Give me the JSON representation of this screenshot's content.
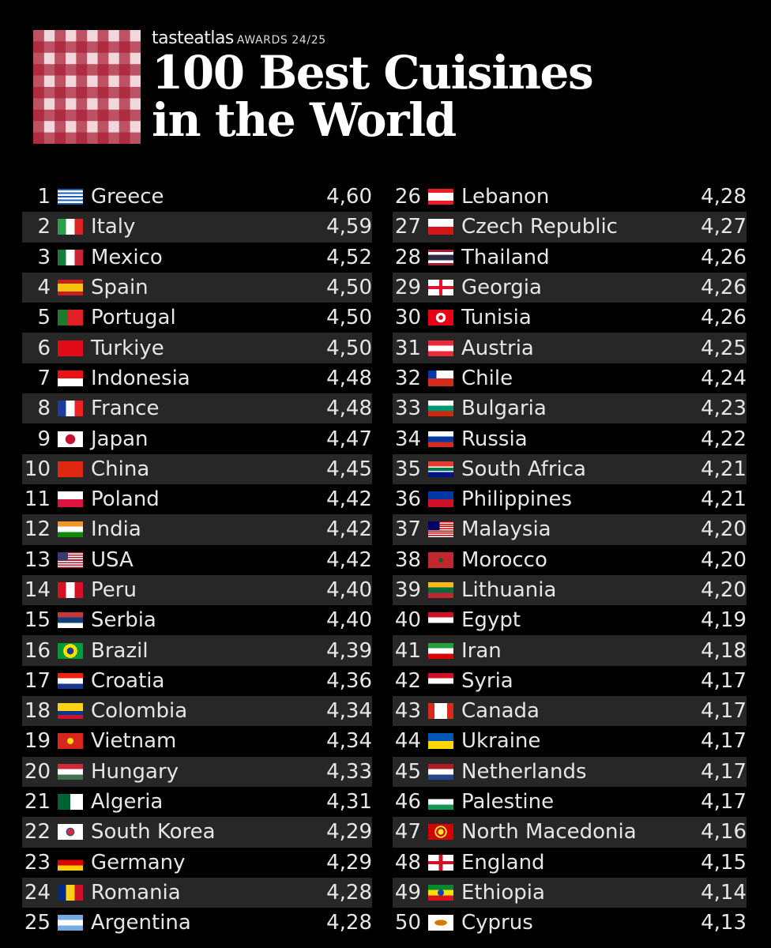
{
  "header": {
    "brand": "tasteatlas",
    "awards": "AWARDS 24/25",
    "title_line1": "100 Best Cuisines",
    "title_line2": "in the World"
  },
  "left": [
    {
      "rank": "1",
      "country": "Greece",
      "score": "4,60",
      "flag": "linear-gradient(180deg,#1b5fb5 0 11%,#fff 11% 22%,#1b5fb5 22% 33%,#fff 33% 44%,#1b5fb5 44% 56%,#fff 56% 67%,#1b5fb5 67% 78%,#fff 78% 89%,#1b5fb5 89%)"
    },
    {
      "rank": "2",
      "country": "Italy",
      "score": "4,59",
      "flag": "linear-gradient(90deg,#2e9e4f 33%,#fff 33% 67%,#d22 67%)"
    },
    {
      "rank": "3",
      "country": "Mexico",
      "score": "4,52",
      "flag": "linear-gradient(90deg,#1a7a3f 33%,#fff 33% 67%,#cc2233 67%)"
    },
    {
      "rank": "4",
      "country": "Spain",
      "score": "4,50",
      "flag": "linear-gradient(180deg,#c41e1e 25%,#f7c30b 25% 75%,#c41e1e 75%)"
    },
    {
      "rank": "5",
      "country": "Portugal",
      "score": "4,50",
      "flag": "linear-gradient(90deg,#1d7a2e 40%,#e01f26 40%)"
    },
    {
      "rank": "6",
      "country": "Turkiye",
      "score": "4,50",
      "flag": "#e30a17"
    },
    {
      "rank": "7",
      "country": "Indonesia",
      "score": "4,48",
      "flag": "linear-gradient(180deg,#e11 50%,#fff 50%)"
    },
    {
      "rank": "8",
      "country": "France",
      "score": "4,48",
      "flag": "linear-gradient(90deg,#1e3c9e 33%,#fff 33% 67%,#e22 67%)"
    },
    {
      "rank": "9",
      "country": "Japan",
      "score": "4,47",
      "flag": "radial-gradient(circle,#c41230 32%,#fff 34%)"
    },
    {
      "rank": "10",
      "country": "China",
      "score": "4,45",
      "flag": "#de2910"
    },
    {
      "rank": "11",
      "country": "Poland",
      "score": "4,42",
      "flag": "linear-gradient(180deg,#fff 50%,#dc143c 50%)"
    },
    {
      "rank": "12",
      "country": "India",
      "score": "4,42",
      "flag": "linear-gradient(180deg,#f0932b 33%,#fff 33% 67%,#138808 67%)"
    },
    {
      "rank": "13",
      "country": "USA",
      "score": "4,42",
      "flag": "linear-gradient(90deg,#3c3b6e 40%,transparent 40%) 0 0/100% 54% no-repeat, repeating-linear-gradient(180deg,#b22234 0 7.7%,#fff 7.7% 15.4%)"
    },
    {
      "rank": "14",
      "country": "Peru",
      "score": "4,40",
      "flag": "linear-gradient(90deg,#d91023 33%,#fff 33% 67%,#d91023 67%)"
    },
    {
      "rank": "15",
      "country": "Serbia",
      "score": "4,40",
      "flag": "linear-gradient(180deg,#c6363c 33%,#0c4076 33% 67%,#fff 67%)"
    },
    {
      "rank": "16",
      "country": "Brazil",
      "score": "4,39",
      "flag": "radial-gradient(circle,#1e3a8a 22%,#fedf00 24% 46%,#009b3a 48%)"
    },
    {
      "rank": "17",
      "country": "Croatia",
      "score": "4,36",
      "flag": "linear-gradient(180deg,#e21 33%,#fff 33% 67%,#18358c 67%)"
    },
    {
      "rank": "18",
      "country": "Colombia",
      "score": "4,34",
      "flag": "linear-gradient(180deg,#fcd116 50%,#003893 50% 75%,#ce1126 75%)"
    },
    {
      "rank": "19",
      "country": "Vietnam",
      "score": "4,34",
      "flag": "radial-gradient(circle,#ffde00 20%,#da251d 22%)"
    },
    {
      "rank": "20",
      "country": "Hungary",
      "score": "4,33",
      "flag": "linear-gradient(180deg,#ce2939 33%,#fff 33% 67%,#477050 67%)"
    },
    {
      "rank": "21",
      "country": "Algeria",
      "score": "4,31",
      "flag": "linear-gradient(90deg,#006233 50%,#fff 50%)"
    },
    {
      "rank": "22",
      "country": "South Korea",
      "score": "4,29",
      "flag": "radial-gradient(circle,#cd2e3a 20%,#0047a0 26%,#fff 30%)"
    },
    {
      "rank": "23",
      "country": "Germany",
      "score": "4,29",
      "flag": "linear-gradient(180deg,#000 33%,#dd0000 33% 67%,#ffce00 67%)"
    },
    {
      "rank": "24",
      "country": "Romania",
      "score": "4,28",
      "flag": "linear-gradient(90deg,#002b7f 33%,#fcd116 33% 67%,#ce1126 67%)"
    },
    {
      "rank": "25",
      "country": "Argentina",
      "score": "4,28",
      "flag": "linear-gradient(180deg,#74acdf 33%,#fff 33% 67%,#74acdf 67%)"
    }
  ],
  "right": [
    {
      "rank": "26",
      "country": "Lebanon",
      "score": "4,28",
      "flag": "linear-gradient(180deg,#ed1c24 25%,#fff 25% 75%,#ed1c24 75%)"
    },
    {
      "rank": "27",
      "country": "Czech Republic",
      "score": "4,27",
      "flag": "linear-gradient(180deg,#fff 50%,#d7141a 50%)"
    },
    {
      "rank": "28",
      "country": "Thailand",
      "score": "4,26",
      "flag": "linear-gradient(180deg,#a51931 16%,#fff 16% 33%,#2d2a4a 33% 67%,#fff 67% 84%,#a51931 84%)"
    },
    {
      "rank": "29",
      "country": "Georgia",
      "score": "4,26",
      "flag": "linear-gradient(90deg,transparent 43%,#e8112d 43% 57%,transparent 57%), linear-gradient(180deg,#fff 40%,#e8112d 40% 60%,#fff 60%)"
    },
    {
      "rank": "30",
      "country": "Tunisia",
      "score": "4,26",
      "flag": "radial-gradient(circle,#e70013 14%,#fff 16% 32%,#e70013 34%)"
    },
    {
      "rank": "31",
      "country": "Austria",
      "score": "4,25",
      "flag": "linear-gradient(180deg,#ed2939 33%,#fff 33% 67%,#ed2939 67%)"
    },
    {
      "rank": "32",
      "country": "Chile",
      "score": "4,24",
      "flag": "linear-gradient(90deg,#0039a6 33%,#fff 33%) 0 0/100% 50% no-repeat, linear-gradient(180deg,#fff 50%,#d52b1e 50%)"
    },
    {
      "rank": "33",
      "country": "Bulgaria",
      "score": "4,23",
      "flag": "linear-gradient(180deg,#fff 33%,#00966e 33% 67%,#d62612 67%)"
    },
    {
      "rank": "34",
      "country": "Russia",
      "score": "4,22",
      "flag": "linear-gradient(180deg,#fff 33%,#0039a6 33% 67%,#d52b1e 67%)"
    },
    {
      "rank": "35",
      "country": "South Africa",
      "score": "4,21",
      "flag": "linear-gradient(180deg,#e03c31 33%,#fff 33% 40%,#007a4d 40% 60%,#fff 60% 67%,#001489 67%)"
    },
    {
      "rank": "36",
      "country": "Philippines",
      "score": "4,21",
      "flag": "linear-gradient(180deg,#0038a8 50%,#ce1126 50%)"
    },
    {
      "rank": "37",
      "country": "Malaysia",
      "score": "4,20",
      "flag": "linear-gradient(90deg,#010066 45%,transparent 45%) 0 0/100% 57% no-repeat, repeating-linear-gradient(180deg,#cc0001 0 7.1%,#fff 7.1% 14.2%)"
    },
    {
      "rank": "38",
      "country": "Morocco",
      "score": "4,20",
      "flag": "radial-gradient(circle,#006233 12%,#c1272d 16%)"
    },
    {
      "rank": "39",
      "country": "Lithuania",
      "score": "4,20",
      "flag": "linear-gradient(180deg,#fdb913 33%,#006a44 33% 67%,#c1272d 67%)"
    },
    {
      "rank": "40",
      "country": "Egypt",
      "score": "4,19",
      "flag": "linear-gradient(180deg,#ce1126 33%,#fff 33% 67%,#000 67%)"
    },
    {
      "rank": "41",
      "country": "Iran",
      "score": "4,18",
      "flag": "linear-gradient(180deg,#239f40 33%,#fff 33% 67%,#da0000 67%)"
    },
    {
      "rank": "42",
      "country": "Syria",
      "score": "4,17",
      "flag": "linear-gradient(180deg,#ce1126 33%,#fff 33% 67%,#000 67%)"
    },
    {
      "rank": "43",
      "country": "Canada",
      "score": "4,17",
      "flag": "linear-gradient(90deg,#d52b1e 25%,#fff 25% 75%,#d52b1e 75%)"
    },
    {
      "rank": "44",
      "country": "Ukraine",
      "score": "4,17",
      "flag": "linear-gradient(180deg,#0057b7 50%,#ffd700 50%)"
    },
    {
      "rank": "45",
      "country": "Netherlands",
      "score": "4,17",
      "flag": "linear-gradient(180deg,#ae1c28 33%,#fff 33% 67%,#21468b 67%)"
    },
    {
      "rank": "46",
      "country": "Palestine",
      "score": "4,17",
      "flag": "linear-gradient(180deg,#000 33%,#fff 33% 67%,#149954 67%)"
    },
    {
      "rank": "47",
      "country": "North Macedonia",
      "score": "4,16",
      "flag": "radial-gradient(circle,#f8e92e 18%,#d20000 20%,#d20000 30%,#f8e92e 32% 40%,#d20000 42%)"
    },
    {
      "rank": "48",
      "country": "England",
      "score": "4,15",
      "flag": "linear-gradient(90deg,transparent 42%,#ce1124 42% 58%,transparent 58%), linear-gradient(180deg,#fff 40%,#ce1124 40% 60%,#fff 60%)"
    },
    {
      "rank": "49",
      "country": "Ethiopia",
      "score": "4,14",
      "flag": "radial-gradient(circle,#0f47af 20%,transparent 22%), linear-gradient(180deg,#078930 33%,#fcdd09 33% 67%,#da121a 67%)"
    },
    {
      "rank": "50",
      "country": "Cyprus",
      "score": "4,13",
      "flag": "radial-gradient(ellipse 40% 30%,#d57800 60%,#fff 62%)"
    }
  ]
}
